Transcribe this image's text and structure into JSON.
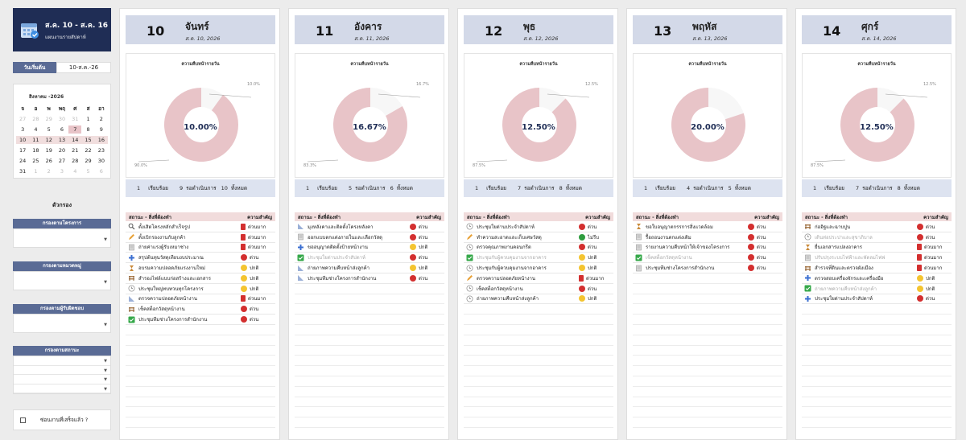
{
  "sidebar": {
    "range": "ส.ค. 10 - ส.ค. 16",
    "subtitle": "แผนงานรายสัปดาห์",
    "start_label": "วันเริ่มต้น",
    "start_value": "10-ส.ค.-26",
    "calendar_title": "สิงหาคม -2026",
    "dow": [
      "จ",
      "อ",
      "พ",
      "พฤ",
      "ศ",
      "ส",
      "อา"
    ],
    "weeks": [
      [
        "27",
        "28",
        "29",
        "30",
        "31",
        "1",
        "2"
      ],
      [
        "3",
        "4",
        "5",
        "6",
        "7",
        "8",
        "9"
      ],
      [
        "10",
        "11",
        "12",
        "13",
        "14",
        "15",
        "16"
      ],
      [
        "17",
        "18",
        "19",
        "20",
        "21",
        "22",
        "23"
      ],
      [
        "24",
        "25",
        "26",
        "27",
        "28",
        "29",
        "30"
      ],
      [
        "31",
        "1",
        "2",
        "3",
        "4",
        "5",
        "6"
      ]
    ],
    "filters_title": "ตัวกรอง",
    "filter_project": "กรองตามโครงการ",
    "filter_category": "กรองตามหมวดหมู่",
    "filter_owner": "กรองตามผู้รับผิดชอบ",
    "filter_status": "กรองตามสถานะ",
    "hide_done": "ซ่อนงานที่เสร็จแล้ว ?"
  },
  "labels": {
    "chart_title": "ความคืบหน้ารายวัน",
    "done": "เรียบร้อย",
    "pending": "รอดำเนินการ",
    "total": "ทั้งหมด",
    "status_task": "สถานะ - สิ่งที่ต้องทำ",
    "importance": "ความสำคัญ"
  },
  "colors": {
    "urgent": "#d32f2f",
    "normal": "#f4c430",
    "info": "#2e9c3e",
    "ring": "#e8c4c8",
    "navy": "#1f2d55"
  },
  "days": [
    {
      "num": "10",
      "name": "จันทร์",
      "date": "ส.ค. 10, 2026",
      "pct": "10.00%",
      "done_pct": "10.0%",
      "pending_pct": "90.0%",
      "done": "1",
      "pending": "9",
      "total": "10",
      "tasks": [
        {
          "icon": "search-icon",
          "name": "ตั้งเสิดโครงหลักสำเร็จรูป",
          "prio": "ด่วนมาก",
          "kind": "sq",
          "muted": false
        },
        {
          "icon": "pencil-icon",
          "name": "ตั้งเบิกรองงานกับลูกค้า",
          "prio": "ด่วนมาก",
          "kind": "sq",
          "muted": false
        },
        {
          "icon": "doc-icon",
          "name": "ถ่ายค่าแรงผู้รับเหมาช่าง",
          "prio": "ด่วนมาก",
          "kind": "sq",
          "muted": false
        },
        {
          "icon": "plus-icon",
          "name": "สรุปต้นทุนวัสดุเทียบงบประมาณ",
          "prio": "ด่วน",
          "kind": "dot",
          "muted": false
        },
        {
          "icon": "hourglass-icon",
          "name": "อบรมความปลอดภัยแรงงานใหม่",
          "prio": "ปกติ",
          "kind": "dot",
          "muted": false
        },
        {
          "icon": "bench-icon",
          "name": "สำรองไฟล์แบบก่อสร้างและเอกสาร",
          "prio": "ปกติ",
          "kind": "dot",
          "muted": false
        },
        {
          "icon": "clock-icon",
          "name": "ประชุมใหญ่ทบทวนทุกโครงการ",
          "prio": "ปกติ",
          "kind": "dot",
          "muted": false
        },
        {
          "icon": "ruler-icon",
          "name": "ตรวจความปลอดภัยหน้างาน",
          "prio": "ด่วนมาก",
          "kind": "sq",
          "muted": false
        },
        {
          "icon": "bench-icon",
          "name": "เช็คสต็อกวัสดุหน้างาน",
          "prio": "ด่วน",
          "kind": "dot",
          "muted": false
        },
        {
          "icon": "check-icon",
          "name": "ประชุมทีมช่างโครงการสำนักงาน",
          "prio": "ด่วน",
          "kind": "dot",
          "muted": false
        }
      ]
    },
    {
      "num": "11",
      "name": "อังคาร",
      "date": "ส.ค. 11, 2026",
      "pct": "16.67%",
      "done_pct": "16.7%",
      "pending_pct": "83.3%",
      "done": "1",
      "pending": "5",
      "total": "6",
      "tasks": [
        {
          "icon": "ruler-icon",
          "name": "มุงหลังคาและติดตั้งโครงหลังคา",
          "prio": "ด่วน",
          "kind": "dot",
          "muted": false
        },
        {
          "icon": "doc-icon",
          "name": "ออกแบบตกแต่งภายในและเลือกวัสดุ",
          "prio": "ด่วน",
          "kind": "dot",
          "muted": false
        },
        {
          "icon": "plus-icon",
          "name": "ขออนุญาตติดตั้งป้ายหน้างาน",
          "prio": "ปกติ",
          "kind": "dot",
          "muted": false
        },
        {
          "icon": "check-icon",
          "name": "ประชุมใยด่านประจำสัปดาห์",
          "prio": "ด่วน",
          "kind": "dot",
          "muted": true
        },
        {
          "icon": "ruler-icon",
          "name": "ถ่ายภาพความคืบหน้าส่งลูกค้า",
          "prio": "ปกติ",
          "kind": "dot",
          "muted": false
        },
        {
          "icon": "ruler-icon",
          "name": "ประชุมทีมช่างโครงการสำนักงาน",
          "prio": "ด่วน",
          "kind": "dot",
          "muted": false
        }
      ]
    },
    {
      "num": "12",
      "name": "พุธ",
      "date": "ส.ค. 12, 2026",
      "pct": "12.50%",
      "done_pct": "12.5%",
      "pending_pct": "87.5%",
      "done": "1",
      "pending": "7",
      "total": "8",
      "tasks": [
        {
          "icon": "clock-icon",
          "name": "ประชุมใยด่านประจำสัปดาห์",
          "prio": "ด่วน",
          "kind": "dot",
          "muted": false
        },
        {
          "icon": "pencil-icon",
          "name": "ทำความสะอาดและเก็บเศษวัสดุ",
          "prio": "ไม่รีบ",
          "kind": "dot",
          "info": true,
          "muted": false
        },
        {
          "icon": "clock-icon",
          "name": "ตรวจคุณภาพงานคอนกรีต",
          "prio": "ด่วน",
          "kind": "dot",
          "muted": false
        },
        {
          "icon": "check-icon",
          "name": "ประชุมกับผู้ควบคุมงานจากอาคาร",
          "prio": "ปกติ",
          "kind": "dot",
          "muted": true
        },
        {
          "icon": "clock-icon",
          "name": "ประชุมกับผู้ควบคุมงานจากอาคาร",
          "prio": "ปกติ",
          "kind": "dot",
          "muted": false
        },
        {
          "icon": "pencil-icon",
          "name": "ตรวจความปลอดภัยหน้างาน",
          "prio": "ด่วนมาก",
          "kind": "sq",
          "muted": false
        },
        {
          "icon": "clock-icon",
          "name": "เช็คสต็อกวัสดุหน้างาน",
          "prio": "ด่วน",
          "kind": "dot",
          "muted": false
        },
        {
          "icon": "clock-icon",
          "name": "ถ่ายภาพความคืบหน้าส่งลูกค้า",
          "prio": "ปกติ",
          "kind": "dot",
          "muted": false
        }
      ]
    },
    {
      "num": "13",
      "name": "พฤหัส",
      "date": "ส.ค. 13, 2026",
      "pct": "20.00%",
      "done_pct": "",
      "pending_pct": "",
      "done": "1",
      "pending": "4",
      "total": "5",
      "tasks": [
        {
          "icon": "hourglass-icon",
          "name": "ขอใบอนุญาตกรรการสิ่งแวดล้อม",
          "prio": "ด่วน",
          "kind": "dot",
          "muted": false
        },
        {
          "icon": "doc-icon",
          "name": "รื้อถอนงานตกแต่งเดิม",
          "prio": "ด่วน",
          "kind": "dot",
          "muted": false
        },
        {
          "icon": "doc-icon",
          "name": "รายงานความคืบหน้าให้เจ้าของโครงการ",
          "prio": "ด่วน",
          "kind": "dot",
          "muted": false
        },
        {
          "icon": "check-icon",
          "name": "เช็คสต็อกวัสดุหน้างาน",
          "prio": "ด่วน",
          "kind": "dot",
          "muted": true
        },
        {
          "icon": "doc-icon",
          "name": "ประชุมทีมช่างโครงการสำนักงาน",
          "prio": "ด่วน",
          "kind": "dot",
          "muted": false
        }
      ]
    },
    {
      "num": "14",
      "name": "ศุกร์",
      "date": "ส.ค. 14, 2026",
      "pct": "12.50%",
      "done_pct": "12.5%",
      "pending_pct": "87.5%",
      "done": "1",
      "pending": "7",
      "total": "8",
      "tasks": [
        {
          "icon": "bench-icon",
          "name": "ก่ออิฐและฉาบปูน",
          "prio": "ด่วน",
          "kind": "dot",
          "muted": false
        },
        {
          "icon": "clock-icon",
          "name": "เดินท่อประปาและสุขาภิบาล",
          "prio": "ด่วน",
          "kind": "dot",
          "muted": true
        },
        {
          "icon": "hourglass-icon",
          "name": "ยื่นเอกสารแปลงอาคาร",
          "prio": "ด่วนมาก",
          "kind": "sq",
          "muted": false
        },
        {
          "icon": "doc-icon",
          "name": "ปรับปรุงระบบไฟฟ้าและพัดลมไฟฟ",
          "prio": "ด่วนมาก",
          "kind": "sq",
          "muted": true
        },
        {
          "icon": "bench-icon",
          "name": "สำรวจที่ดินและตรวจผังเมือง",
          "prio": "ด่วนมาก",
          "kind": "sq",
          "muted": false
        },
        {
          "icon": "plus-icon",
          "name": "ตรวจสอบเครื่องจักรและเครื่องมือ",
          "prio": "ปกติ",
          "kind": "dot",
          "muted": false
        },
        {
          "icon": "check-icon",
          "name": "ถ่ายภาพความคืบหน้าส่งลูกค้า",
          "prio": "ปกติ",
          "kind": "dot",
          "muted": true
        },
        {
          "icon": "plus-icon",
          "name": "ประชุมใยด่านประจำสัปดาห์",
          "prio": "ด่วน",
          "kind": "dot",
          "muted": false
        }
      ]
    }
  ]
}
